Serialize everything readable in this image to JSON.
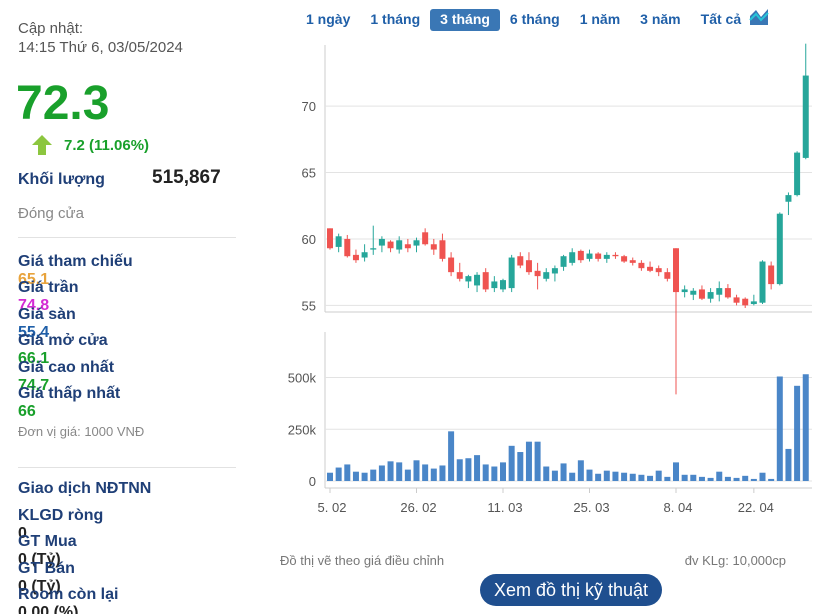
{
  "info": {
    "updated_label": "Cập nhật:",
    "updated_time": "14:15 Thứ 6, 03/05/2024",
    "price": "72.3",
    "change": "7.2 (11.06%)",
    "volume_label": "Khối lượng",
    "volume": "515,867",
    "status": "Đóng cửa",
    "stats": [
      {
        "label": "Giá tham chiếu",
        "value": "65.1",
        "color": "#e8a33c"
      },
      {
        "label": "Giá trần",
        "value": "74.8",
        "color": "#d42bd4"
      },
      {
        "label": "Giá sàn",
        "value": "55.4",
        "color": "#1f5fa8"
      },
      {
        "label": "Giá mở cửa",
        "value": "66.1",
        "color": "#19a02b"
      },
      {
        "label": "Giá cao nhất",
        "value": "74.7",
        "color": "#19a02b"
      },
      {
        "label": "Giá thấp nhất",
        "value": "66",
        "color": "#19a02b"
      }
    ],
    "unit_note": "Đơn vị giá: 1000 VNĐ",
    "foreign_title": "Giao dịch NĐTNN",
    "foreign": [
      {
        "label": "KLGD ròng",
        "value": "0"
      },
      {
        "label": "GT Mua",
        "value": "0 (Tỷ)"
      },
      {
        "label": "GT Bán",
        "value": "0 (Tỷ)"
      },
      {
        "label": "Room còn lại",
        "value": "0.00 (%)"
      }
    ]
  },
  "periods": [
    "1 ngày",
    "1 tháng",
    "3 tháng",
    "6 tháng",
    "1 năm",
    "3 năm",
    "Tất cả"
  ],
  "active_period": 2,
  "chart_data": {
    "type": "candlestick",
    "categories": [
      "5. 02",
      null,
      null,
      null,
      null,
      null,
      null,
      null,
      null,
      null,
      "26. 02",
      null,
      null,
      null,
      null,
      null,
      null,
      null,
      null,
      null,
      "11. 03",
      null,
      null,
      null,
      null,
      null,
      null,
      null,
      null,
      null,
      "25. 03",
      null,
      null,
      null,
      null,
      null,
      null,
      null,
      null,
      null,
      "8. 04",
      null,
      null,
      null,
      null,
      null,
      null,
      null,
      null,
      "22. 04",
      null,
      null,
      null,
      null,
      null,
      null
    ],
    "open": [
      60.8,
      59.4,
      60.0,
      58.8,
      58.6,
      59.2,
      59.5,
      59.8,
      59.2,
      59.6,
      59.5,
      60.5,
      59.6,
      59.9,
      58.6,
      57.5,
      56.8,
      56.5,
      57.5,
      56.3,
      56.2,
      56.3,
      58.7,
      58.4,
      57.6,
      57.0,
      57.4,
      57.9,
      58.2,
      59.1,
      58.5,
      58.9,
      58.5,
      58.8,
      58.7,
      58.4,
      58.2,
      57.9,
      57.8,
      57.5,
      59.3,
      56.0,
      55.8,
      56.2,
      55.5,
      55.8,
      56.3,
      55.6,
      55.5,
      55.1,
      55.2,
      58.0,
      56.6,
      62.8,
      63.3,
      66.1
    ],
    "high": [
      60.8,
      60.4,
      60.3,
      59.2,
      59.6,
      61.0,
      60.2,
      59.9,
      60.2,
      60.0,
      60.1,
      60.8,
      60.0,
      60.4,
      59.0,
      58.2,
      57.3,
      57.5,
      57.8,
      57.2,
      57.0,
      58.8,
      59.0,
      59.0,
      58.2,
      57.8,
      58.0,
      58.8,
      59.3,
      59.2,
      59.2,
      59.0,
      59.0,
      59.0,
      58.8,
      58.6,
      58.4,
      58.3,
      58.0,
      57.8,
      59.3,
      56.5,
      56.3,
      56.5,
      56.3,
      56.8,
      56.6,
      55.8,
      55.6,
      55.8,
      58.4,
      58.3,
      62.0,
      63.5,
      66.6,
      74.7
    ],
    "low": [
      59.2,
      59.0,
      58.6,
      58.2,
      58.3,
      58.8,
      59.0,
      59.0,
      58.9,
      59.0,
      59.0,
      59.5,
      58.8,
      58.3,
      57.2,
      56.8,
      56.3,
      56.0,
      56.0,
      56.0,
      56.0,
      56.0,
      57.8,
      57.3,
      56.2,
      56.8,
      56.8,
      57.6,
      58.0,
      58.2,
      58.3,
      58.3,
      58.2,
      58.5,
      58.2,
      58.0,
      57.6,
      57.5,
      57.2,
      56.8,
      48.3,
      55.6,
      55.4,
      55.4,
      55.2,
      55.3,
      55.5,
      55.0,
      54.8,
      55.0,
      55.1,
      56.2,
      56.5,
      61.8,
      63.2,
      66.0
    ],
    "close": [
      59.3,
      60.2,
      58.7,
      58.4,
      59.0,
      59.3,
      60.0,
      59.3,
      59.9,
      59.3,
      59.9,
      59.6,
      59.2,
      58.5,
      57.5,
      57.0,
      57.2,
      57.3,
      56.2,
      56.8,
      56.9,
      58.6,
      58.0,
      57.5,
      57.2,
      57.5,
      57.8,
      58.7,
      59.0,
      58.4,
      58.9,
      58.5,
      58.8,
      58.7,
      58.3,
      58.2,
      57.8,
      57.6,
      57.5,
      57.0,
      56.0,
      56.2,
      56.1,
      55.5,
      56.0,
      56.3,
      55.6,
      55.2,
      55.0,
      55.3,
      58.3,
      56.6,
      61.9,
      63.3,
      66.5,
      72.3
    ],
    "ylim": [
      54.5,
      74.6
    ],
    "yticks": [
      55,
      60,
      65,
      70
    ],
    "up_color": "#26a69a",
    "down_color": "#ef5350",
    "volume": {
      "values": [
        40000,
        65000,
        80000,
        45000,
        40000,
        55000,
        75000,
        95000,
        90000,
        55000,
        100000,
        80000,
        60000,
        75000,
        240000,
        105000,
        110000,
        125000,
        80000,
        70000,
        90000,
        170000,
        140000,
        190000,
        190000,
        70000,
        50000,
        85000,
        40000,
        100000,
        55000,
        35000,
        50000,
        45000,
        40000,
        35000,
        30000,
        25000,
        50000,
        20000,
        90000,
        30000,
        30000,
        20000,
        15000,
        45000,
        20000,
        15000,
        25000,
        10000,
        40000,
        10000,
        505000,
        155000,
        460000,
        515867
      ],
      "ylim": [
        0,
        720000
      ],
      "yticks": [
        0,
        {
          "value": 250000,
          "label": "250k"
        },
        {
          "value": 500000,
          "label": "500k"
        }
      ],
      "color": "#4a86c8"
    }
  },
  "footer": {
    "note_left": "Đồ thị vẽ theo giá điều chỉnh",
    "note_right": "đv KLg: 10,000cp",
    "button": "Xem đồ thị kỹ thuật"
  }
}
